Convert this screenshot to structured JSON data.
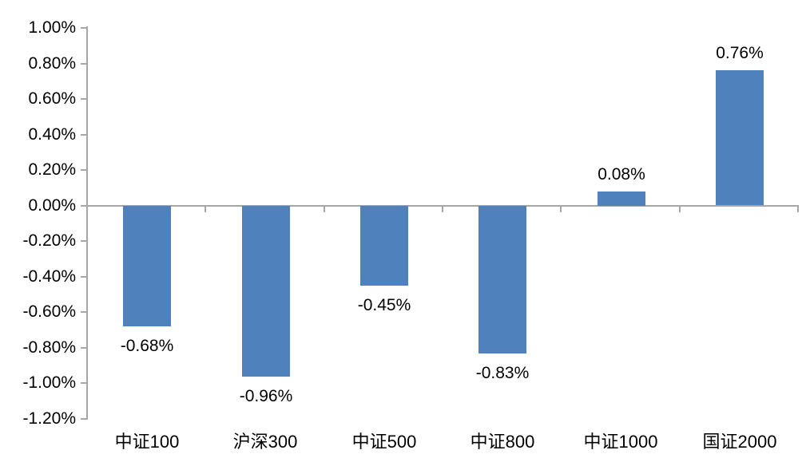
{
  "chart_data": {
    "type": "bar",
    "title": "",
    "xlabel": "",
    "ylabel": "",
    "categories": [
      "中证100",
      "沪深300",
      "中证500",
      "中证800",
      "中证1000",
      "国证2000"
    ],
    "values": [
      -0.68,
      -0.96,
      -0.45,
      -0.83,
      0.08,
      0.76
    ],
    "value_labels": [
      "-0.68%",
      "-0.96%",
      "-0.45%",
      "-0.83%",
      "0.08%",
      "0.76%"
    ],
    "y_ticks": [
      "1.00%",
      "0.80%",
      "0.60%",
      "0.40%",
      "0.20%",
      "0.00%",
      "-0.20%",
      "-0.40%",
      "-0.60%",
      "-0.80%",
      "-1.00%",
      "-1.20%"
    ],
    "y_tick_values": [
      1.0,
      0.8,
      0.6,
      0.4,
      0.2,
      0.0,
      -0.2,
      -0.4,
      -0.6,
      -0.8,
      -1.0,
      -1.2
    ],
    "ylim": [
      -1.2,
      1.0
    ],
    "grid": false,
    "legend_position": "none",
    "bar_color": "#4F81BD",
    "axis_color": "#A6A6A6",
    "text_color": "#000000"
  }
}
